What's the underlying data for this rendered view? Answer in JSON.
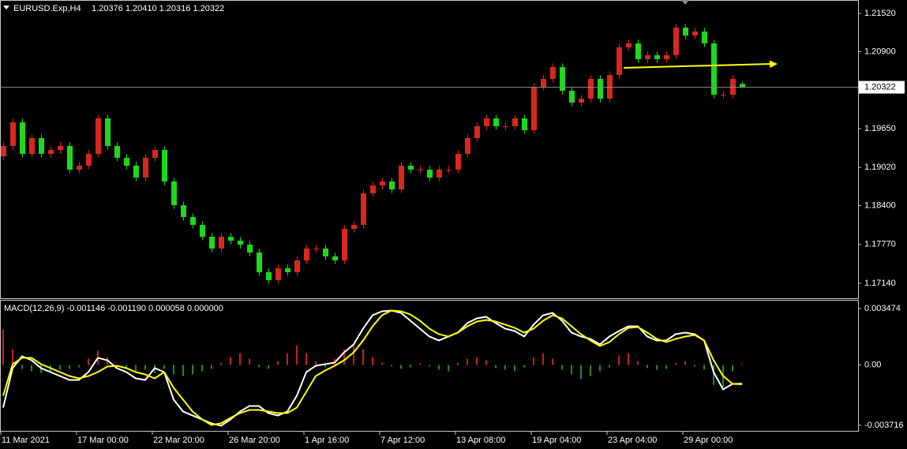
{
  "chart_data": [
    {
      "type": "candlestick",
      "title": "EURUSD.Exp,H4",
      "subtitle": "1.20376 1.20410 1.20316 1.20322",
      "up_color": "#d8281e",
      "down_color": "#1ed81e",
      "open": [
        1.192,
        1.19369,
        1.19753,
        1.19241,
        1.19497,
        1.19241,
        1.19305,
        1.19369,
        1.18985,
        1.19049,
        1.19241,
        1.19817,
        1.19369,
        1.19177,
        1.19049,
        1.18856,
        1.19177,
        1.19305,
        1.18792,
        1.18408,
        1.18216,
        1.18088,
        1.17896,
        1.17704,
        1.17896,
        1.17832,
        1.17768,
        1.1764,
        1.1732,
        1.17192,
        1.17384,
        1.1732,
        1.17512,
        1.17704,
        1.17704,
        1.17576,
        1.17512,
        1.18024,
        1.18088,
        1.186,
        1.18728,
        1.18792,
        1.18664,
        1.19049,
        1.18985,
        1.18985,
        1.18856,
        1.18985,
        1.18985,
        1.19241,
        1.19497,
        1.19689,
        1.19817,
        1.19689,
        1.19689,
        1.19817,
        1.19625,
        1.20329,
        1.20457,
        1.20649,
        1.20265,
        1.20073,
        1.20137,
        1.20457,
        1.20137,
        1.20521,
        1.2097,
        1.21034,
        1.20778,
        1.20842,
        1.20778,
        1.20842,
        1.2129,
        1.21162,
        1.21226,
        1.21034,
        1.20201,
        1.20201,
        1.20376
      ],
      "high": [
        1.19429,
        1.19813,
        1.19813,
        1.19557,
        1.19557,
        1.19365,
        1.19429,
        1.19429,
        1.19109,
        1.19301,
        1.19877,
        1.19877,
        1.19429,
        1.19237,
        1.19109,
        1.19237,
        1.19365,
        1.19365,
        1.18852,
        1.18468,
        1.18276,
        1.18148,
        1.17956,
        1.17956,
        1.17956,
        1.17892,
        1.17828,
        1.177,
        1.1738,
        1.17444,
        1.17444,
        1.17572,
        1.17764,
        1.17764,
        1.17764,
        1.17636,
        1.18084,
        1.18148,
        1.1866,
        1.18788,
        1.18852,
        1.18852,
        1.19109,
        1.19109,
        1.19045,
        1.19045,
        1.19045,
        1.19045,
        1.19301,
        1.19557,
        1.19749,
        1.19877,
        1.19877,
        1.19749,
        1.19877,
        1.19877,
        1.20389,
        1.20517,
        1.20709,
        1.20709,
        1.20325,
        1.20197,
        1.20517,
        1.20517,
        1.20581,
        1.2103,
        1.21094,
        1.21094,
        1.20902,
        1.20902,
        1.20902,
        1.2135,
        1.2135,
        1.21286,
        1.21286,
        1.21094,
        1.20261,
        1.20517,
        1.2041
      ],
      "low": [
        1.1914,
        1.19309,
        1.19181,
        1.19181,
        1.19181,
        1.19181,
        1.19245,
        1.18925,
        1.18925,
        1.18989,
        1.19181,
        1.19309,
        1.19117,
        1.18989,
        1.18796,
        1.18796,
        1.19117,
        1.18732,
        1.18348,
        1.18156,
        1.18028,
        1.17836,
        1.17644,
        1.17644,
        1.17772,
        1.17708,
        1.1758,
        1.1726,
        1.17132,
        1.17132,
        1.1726,
        1.1726,
        1.17452,
        1.17644,
        1.17516,
        1.17452,
        1.17452,
        1.17964,
        1.18028,
        1.1854,
        1.18668,
        1.18604,
        1.18604,
        1.18925,
        1.18925,
        1.18796,
        1.18796,
        1.18925,
        1.18925,
        1.19181,
        1.19437,
        1.19629,
        1.19629,
        1.19629,
        1.19629,
        1.19565,
        1.19565,
        1.20269,
        1.20397,
        1.20205,
        1.20013,
        1.20013,
        1.20077,
        1.20077,
        1.20077,
        1.20461,
        1.2091,
        1.20718,
        1.20718,
        1.20718,
        1.20718,
        1.20782,
        1.21102,
        1.21102,
        1.20974,
        1.20141,
        1.20141,
        1.20141,
        1.20316
      ],
      "close": [
        1.19369,
        1.19753,
        1.19241,
        1.19497,
        1.19241,
        1.19305,
        1.19369,
        1.18985,
        1.19049,
        1.19241,
        1.19817,
        1.19369,
        1.19177,
        1.19049,
        1.18856,
        1.19177,
        1.19305,
        1.18792,
        1.18408,
        1.18216,
        1.18088,
        1.17896,
        1.17704,
        1.17896,
        1.17832,
        1.17768,
        1.1764,
        1.1732,
        1.17192,
        1.17384,
        1.1732,
        1.17512,
        1.17704,
        1.17704,
        1.17576,
        1.17512,
        1.18024,
        1.18088,
        1.186,
        1.18728,
        1.18792,
        1.18664,
        1.19049,
        1.18985,
        1.18985,
        1.18856,
        1.18985,
        1.18985,
        1.19241,
        1.19497,
        1.19689,
        1.19817,
        1.19689,
        1.19689,
        1.19817,
        1.19625,
        1.20329,
        1.20457,
        1.20649,
        1.20265,
        1.20073,
        1.20137,
        1.20457,
        1.20137,
        1.20521,
        1.2097,
        1.21034,
        1.20778,
        1.20842,
        1.20778,
        1.20842,
        1.2129,
        1.21162,
        1.21226,
        1.21034,
        1.20201,
        1.20201,
        1.20457,
        1.20322
      ],
      "ylim": [
        1.16897,
        1.21738
      ],
      "yticks": [
        {
          "value": 1.2152,
          "label": "1.21520"
        },
        {
          "value": 1.209,
          "label": "1.20900"
        },
        {
          "value": 1.1965,
          "label": "1.19650"
        },
        {
          "value": 1.1902,
          "label": "1.19020"
        },
        {
          "value": 1.184,
          "label": "1.18400"
        },
        {
          "value": 1.1777,
          "label": "1.17770"
        },
        {
          "value": 1.1714,
          "label": "1.17140"
        }
      ],
      "current_price": 1.20322,
      "trendline": {
        "x": [
          65.5,
          81.75
        ],
        "y": [
          1.20637,
          1.20701
        ],
        "color": "#ffff00"
      }
    },
    {
      "type": "macd",
      "title": "MACD(12,26,9) -0.001146 -0.001190 0.000058 0.000000",
      "categories": [
        "11 Mar 2021",
        null,
        null,
        null,
        null,
        null,
        null,
        null,
        "17 Mar 00:00",
        null,
        null,
        null,
        null,
        null,
        null,
        null,
        "22 Mar 20:00",
        null,
        null,
        null,
        null,
        null,
        null,
        null,
        "26 Mar 20:00",
        null,
        null,
        null,
        null,
        null,
        null,
        null,
        "1 Apr 16:00",
        null,
        null,
        null,
        null,
        null,
        null,
        null,
        "7 Apr 12:00",
        null,
        null,
        null,
        null,
        null,
        null,
        null,
        "13 Apr 08:00",
        null,
        null,
        null,
        null,
        null,
        null,
        null,
        "19 Apr 04:00",
        null,
        null,
        null,
        null,
        null,
        null,
        null,
        "23 Apr 04:00",
        null,
        null,
        null,
        null,
        null,
        null,
        null,
        "29 Apr 00:00",
        null,
        null,
        null,
        null,
        null,
        null
      ],
      "histogram": {
        "up_color": "#c81e1e",
        "down_color": "#1e8c1e",
        "values": [
          0.002187,
          0.000972,
          -0.000243,
          -0.000389,
          -0.000486,
          -0.000389,
          -0.000292,
          -0.000243,
          -0.000146,
          0.000389,
          0.000875,
          0.000486,
          -0.000146,
          -0.000243,
          -0.000389,
          -0.000292,
          -0.000486,
          -0.000243,
          -0.000583,
          -0.00068,
          -0.000583,
          -0.000389,
          -0.000243,
          0.000146,
          0.000486,
          0.000729,
          0.000389,
          -0.000146,
          -0.000243,
          0.000243,
          0.000729,
          0.001215,
          0.000729,
          0.000243,
          -0.000146,
          0.000389,
          0.000972,
          0.001215,
          0.000972,
          0.000486,
          0.000146,
          -9.7e-05,
          -0.000243,
          -0.000146,
          9.7e-05,
          -9.7e-05,
          -0.000292,
          -0.000389,
          0.000146,
          0.000389,
          0.000486,
          0.000292,
          -0.000194,
          -0.000292,
          -0.000389,
          -0.000146,
          0.000486,
          0.000729,
          0.000389,
          -0.000292,
          -0.000583,
          -0.000875,
          -0.00068,
          -0.000389,
          -0.000146,
          0.000583,
          0.000729,
          0.000243,
          -0.000194,
          -0.000292,
          -0.000243,
          0.000146,
          0.000243,
          -9.7e-05,
          -0.000292,
          -0.001215,
          -0.001361,
          -0.000389,
          5.8e-05
        ]
      },
      "lines": [
        {
          "color": "#ffffff",
          "values": [
            -0.002624,
            -0.000194,
            0.000535,
            0.000292,
            -0.000194,
            -0.000437,
            -0.00068,
            -0.000923,
            -0.000923,
            -0.000437,
            0.000437,
            0.000292,
            -0.000194,
            -0.000437,
            -0.000826,
            -0.000923,
            -0.000194,
            -0.000437,
            -0.002138,
            -0.002867,
            -0.00311,
            -0.003353,
            -0.003596,
            -0.003742,
            -0.003353,
            -0.002867,
            -0.002527,
            -0.002527,
            -0.002965,
            -0.00311,
            -0.002867,
            -0.001895,
            -0.000437,
            -4.9e-05,
            4.9e-05,
            0.000146,
            0.000778,
            0.001264,
            0.002236,
            0.003062,
            0.003305,
            0.003353,
            0.003208,
            0.002722,
            0.002236,
            0.00175,
            0.001507,
            0.00175,
            0.001993,
            0.002576,
            0.002867,
            0.002965,
            0.002576,
            0.002236,
            0.00209,
            0.00175,
            0.002479,
            0.003062,
            0.003208,
            0.002722,
            0.001993,
            0.00175,
            0.001604,
            0.001264,
            0.00175,
            0.00209,
            0.002381,
            0.002381,
            0.00175,
            0.001507,
            0.001507,
            0.001895,
            0.001993,
            0.001895,
            0.001507,
            -0.000437,
            -0.001507,
            -0.001166,
            -0.001146
          ]
        },
        {
          "color": "#ffff00",
          "values": [
            -0.001895,
            4.9e-05,
            0.000437,
            0.000437,
            4.9e-05,
            -0.000194,
            -0.000437,
            -0.00068,
            -0.000826,
            -0.00068,
            -0.000437,
            -9.7e-05,
            -4.9e-05,
            -0.000194,
            -0.000437,
            -0.000583,
            -0.000826,
            -0.000437,
            -0.001409,
            -0.002138,
            -0.002867,
            -0.003353,
            -0.003694,
            -0.003596,
            -0.003256,
            -0.002965,
            -0.00277,
            -0.00277,
            -0.002867,
            -0.002965,
            -0.002965,
            -0.002624,
            -0.001652,
            -0.00068,
            -0.00034,
            -4.9e-05,
            0.000292,
            0.000778,
            0.001507,
            0.002381,
            0.003062,
            0.003353,
            0.003305,
            0.00311,
            0.002722,
            0.002236,
            0.001895,
            0.00175,
            0.001993,
            0.002381,
            0.002673,
            0.00277,
            0.002673,
            0.002479,
            0.002284,
            0.001993,
            0.002236,
            0.002722,
            0.003062,
            0.002867,
            0.002381,
            0.001895,
            0.001507,
            0.001166,
            0.001409,
            0.001895,
            0.002284,
            0.002333,
            0.001993,
            0.001604,
            0.001409,
            0.001604,
            0.00175,
            0.001847,
            0.001507,
            0.000292,
            -0.00068,
            -0.001166,
            -0.00119
          ]
        }
      ],
      "ylim": [
        -0.004056,
        0.004008
      ],
      "yticks": [
        0.003474,
        {
          "value": 0,
          "label": "0.00"
        },
        -0.003716
      ]
    }
  ]
}
